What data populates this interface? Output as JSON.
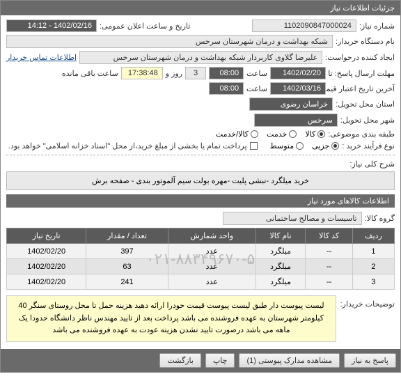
{
  "header": {
    "title": "جزئیات اطلاعات نیاز"
  },
  "fields": {
    "need_no_label": "شماره نیاز:",
    "need_no": "1102090847000024",
    "announce_label": "تاریخ و ساعت اعلان عمومی:",
    "announce_value": "1402/02/16 - 14:12",
    "buyer_org_label": "نام دستگاه خریدار:",
    "buyer_org": "شبکه بهداشت و درمان شهرستان سرخس",
    "requester_label": "ایجاد کننده درخواست:",
    "requester": "علیرضا گلاوی کاربردار شبکه بهداشت و درمان شهرستان سرخس",
    "contact_link": "اطلاعات تماس خریدار",
    "deadline_label": "مهلت ارسال پاسخ: تا تاریخ:",
    "deadline_date": "1402/02/20",
    "hour_label": "ساعت",
    "deadline_hour": "08:00",
    "days_label": "روز و",
    "days_value": "3",
    "remain_time": "17:38:48",
    "remain_label": "ساعت باقی مانده",
    "validity_label": "آخرین تاریخ اعتبار قیمت: تا تاریخ:",
    "validity_date": "1402/03/16",
    "validity_hour": "08:00",
    "province_label": "استان محل تحویل:",
    "province": "خراسان رضوی",
    "city_label": "شهر محل تحویل:",
    "city": "سرخس",
    "category_label": "طبقه بندی موضوعی:",
    "cat_goods": "کالا",
    "cat_service": "خدمت",
    "cat_goods_service": "کالا/خدمت",
    "process_label": "نوع فرآیند خرید :",
    "proc_partial": "جزیی",
    "proc_medium": "متوسط",
    "payment_note": "پرداخت تمام یا بخشی از مبلغ خرید،از محل \"اسناد خزانه اسلامی\" خواهد بود.",
    "desc_label": "شرح کلی نیاز:",
    "desc_text": "خرید میلگرد -نبشی پلیت -مهره بولت سیم آلموتور بندی - صفحه برش"
  },
  "items_section": {
    "title": "اطلاعات کالاهای مورد نیاز",
    "group_label": "گروه کالا:",
    "group_value": "تاسیسات و مصالح ساختمانی",
    "columns": [
      "ردیف",
      "کد کالا",
      "نام کالا",
      "واحد شمارش",
      "تعداد / مقدار",
      "تاریخ نیاز"
    ],
    "rows": [
      [
        "1",
        "--",
        "میلگرد",
        "عدد",
        "397",
        "1402/02/20"
      ],
      [
        "2",
        "--",
        "میلگرد",
        "عدد",
        "63",
        "1402/02/20"
      ],
      [
        "3",
        "--",
        "میلگرد",
        "عدد",
        "241",
        "1402/02/20"
      ]
    ],
    "watermark": "۰۲۱-۸۸۳۴۹۶۷۰-۵"
  },
  "buyer_note": {
    "label": "توضیحات خریدار:",
    "text": "لیست پیوست دار طبق لیست پیوست قیمت خودرا ارائه دهید هزینه حمل تا محل روستای سنگر 40 کیلومتر شهرستان به عهده فروشنده می باشد پرداخت بعد از تایید مهندس ناظر دانشگاه حدودا یک ماهه می باشد درصورت تایید نشدن هزینه عودت به عهده فروشنده می باشد"
  },
  "footer": {
    "btn_reply": "پاسخ به نیاز",
    "btn_attach": "مشاهده مدارک پیوستی  (1)",
    "btn_print": "چاپ",
    "btn_back": "بازگشت"
  },
  "colors": {
    "header_bg": "#6a6a6a",
    "box_bg": "#e9e9e9",
    "yellow": "#fffccc"
  }
}
